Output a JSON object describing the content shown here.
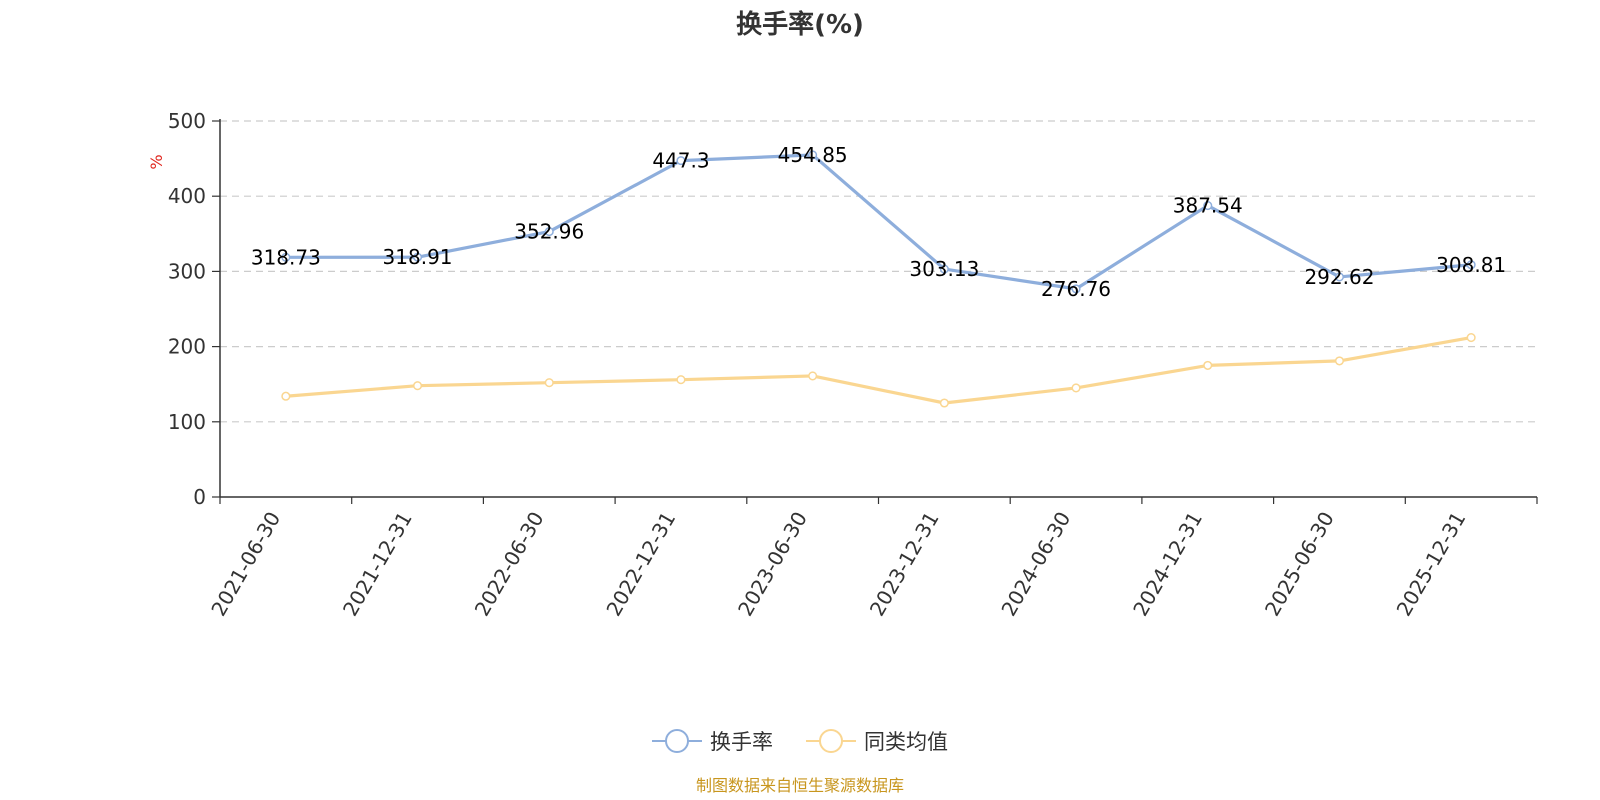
{
  "chart_data": {
    "type": "line",
    "title": "换手率(%)",
    "y_unit": "%",
    "ylim": [
      0,
      500
    ],
    "yticks": [
      0,
      100,
      200,
      300,
      400,
      500
    ],
    "grid": "horizontal dashed",
    "legend_placement": "bottom-center",
    "x": [
      "2021-06-30",
      "2021-12-31",
      "2022-06-30",
      "2022-12-31",
      "2023-06-30",
      "2023-12-31",
      "2024-06-30",
      "2024-12-31",
      "2025-06-30",
      "2025-12-31"
    ],
    "series": [
      {
        "name": "换手率",
        "color": "#8eaedc",
        "values": [
          318.73,
          318.91,
          352.96,
          447.3,
          454.85,
          303.13,
          276.76,
          387.54,
          292.62,
          308.81
        ],
        "labels": [
          "318.73",
          "318.91",
          "352.96",
          "447.3",
          "454.85",
          "303.13",
          "276.76",
          "387.54",
          "292.62",
          "308.81"
        ],
        "show_labels": true
      },
      {
        "name": "同类均值",
        "color": "#fad691",
        "values": [
          134,
          148,
          152,
          156,
          161,
          125,
          145,
          175,
          181,
          212
        ],
        "show_labels": false
      }
    ]
  },
  "source": "制图数据来自恒生聚源数据库"
}
